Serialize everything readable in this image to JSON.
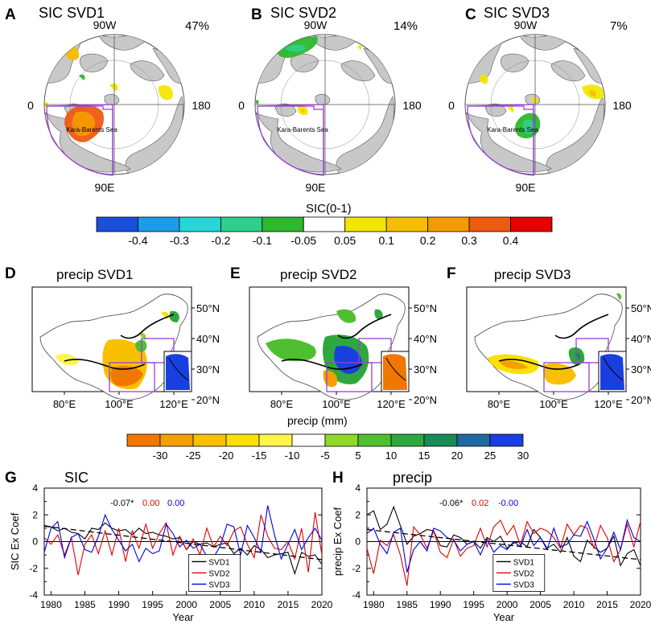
{
  "sic_maps": [
    {
      "letter": "A",
      "title": "SIC SVD1",
      "pct": "47%",
      "pattern": "svd1"
    },
    {
      "letter": "B",
      "title": "SIC SVD2",
      "pct": "14%",
      "pattern": "svd2"
    },
    {
      "letter": "C",
      "title": "SIC SVD3",
      "pct": "7%",
      "pattern": "svd3"
    }
  ],
  "polar_labels": {
    "top": "90W",
    "left": "0",
    "right": "180",
    "bottom": "90E",
    "region": "Kara-Barents Sea"
  },
  "sic_colorbar": {
    "title": "SIC(0-1)",
    "colors": [
      "#1a4fdc",
      "#1e9be8",
      "#26d6d6",
      "#2ecf8a",
      "#2db82d",
      "#ffffff",
      "#f2e600",
      "#f5bf00",
      "#f59a00",
      "#ee5a10",
      "#e60000"
    ],
    "ticks": [
      "-0.4",
      "-0.3",
      "-0.2",
      "-0.1",
      "-0.05",
      "0.05",
      "0.1",
      "0.2",
      "0.3",
      "0.4"
    ]
  },
  "precip_maps": [
    {
      "letter": "D",
      "title": "precip SVD1",
      "pattern": "p1"
    },
    {
      "letter": "E",
      "title": "precip SVD2",
      "pattern": "p2"
    },
    {
      "letter": "F",
      "title": "precip SVD3",
      "pattern": "p3"
    }
  ],
  "china_axes": {
    "lat_labels": [
      "50°N",
      "40°N",
      "30°N",
      "20°N"
    ],
    "lon_labels": [
      "80°E",
      "100°E",
      "120°E"
    ]
  },
  "precip_colorbar": {
    "title": "precip (mm)",
    "colors": [
      "#f07800",
      "#f5a000",
      "#f8c000",
      "#fbe000",
      "#fff44a",
      "#ffffff",
      "#8fd82a",
      "#4fbf32",
      "#2ea83e",
      "#1a8a56",
      "#1e6aa0",
      "#1a3fe0"
    ],
    "ticks": [
      "-30",
      "-25",
      "-20",
      "-15",
      "-10",
      "-5",
      "5",
      "10",
      "15",
      "20",
      "25",
      "30"
    ]
  },
  "chart_data": [
    {
      "letter": "G",
      "type": "line",
      "title": "SIC",
      "xlabel": "Year",
      "ylabel": "SIC Ex Coef",
      "xlim": [
        1979,
        2020
      ],
      "ylim": [
        -4,
        4
      ],
      "xticks": [
        "1980",
        "1985",
        "1990",
        "1995",
        "2000",
        "2005",
        "2010",
        "2015",
        "2020"
      ],
      "yticks": [
        "4",
        "2",
        "0",
        "-2",
        "-4"
      ],
      "trend_labels": [
        {
          "text": "-0.07*",
          "color": "#000000"
        },
        {
          "text": "0.00",
          "color": "#e00000"
        },
        {
          "text": "0.00",
          "color": "#0000e0"
        }
      ],
      "x": [
        1979,
        1980,
        1981,
        1982,
        1983,
        1984,
        1985,
        1986,
        1987,
        1988,
        1989,
        1990,
        1991,
        1992,
        1993,
        1994,
        1995,
        1996,
        1997,
        1998,
        1999,
        2000,
        2001,
        2002,
        2003,
        2004,
        2005,
        2006,
        2007,
        2008,
        2009,
        2010,
        2011,
        2012,
        2013,
        2014,
        2015,
        2016,
        2017,
        2018,
        2019,
        2020
      ],
      "series": [
        {
          "name": "SVD1",
          "color": "#000000",
          "values": [
            1.2,
            1.1,
            0.8,
            1.0,
            0.7,
            0.6,
            0.2,
            1.0,
            0.9,
            1.4,
            1.0,
            0.8,
            0.9,
            0.5,
            1.0,
            0.6,
            0.7,
            0.5,
            0.4,
            0.2,
            0.3,
            -0.6,
            0.0,
            -0.2,
            -0.1,
            -0.4,
            -0.2,
            -0.1,
            -0.9,
            -0.5,
            -1.0,
            -0.3,
            -0.6,
            -1.2,
            -1.0,
            -0.9,
            -0.8,
            -2.4,
            -0.8,
            -1.1,
            -1.0,
            -1.7
          ]
        },
        {
          "name": "SVD2",
          "color": "#e00000",
          "values": [
            0.3,
            -0.2,
            0.5,
            -1.0,
            0.3,
            -2.5,
            -0.2,
            0.5,
            -0.9,
            0.8,
            -1.0,
            1.0,
            -1.5,
            0.8,
            -0.5,
            1.3,
            -0.5,
            0.6,
            1.4,
            -1.0,
            0.4,
            -0.6,
            0.2,
            -1.0,
            1.0,
            -0.4,
            0.4,
            -0.3,
            0.8,
            1.1,
            -0.2,
            -1.2,
            2.0,
            0.4,
            -0.5,
            -0.6,
            0.0,
            -1.3,
            1.0,
            -2.3,
            2.2,
            -1.0
          ]
        },
        {
          "name": "SVD3",
          "color": "#0000e0",
          "values": [
            -0.8,
            1.0,
            1.5,
            -1.2,
            0.3,
            0.6,
            -0.6,
            -0.8,
            0.4,
            2.0,
            0.9,
            0.1,
            -0.7,
            -0.2,
            -1.5,
            -0.5,
            -0.9,
            -0.7,
            1.3,
            0.6,
            -0.4,
            0.1,
            -0.5,
            -0.2,
            -1.1,
            -1.2,
            -0.3,
            1.3,
            1.1,
            -1.0,
            1.2,
            0.3,
            -0.8,
            2.7,
            0.5,
            -1.3,
            -0.2,
            0.9,
            -0.6,
            0.3,
            1.0,
            0.1
          ]
        }
      ],
      "trend": {
        "name": "SVD1 trend",
        "color": "#000000",
        "start": 1.15,
        "end": -1.35
      },
      "legend": {
        "placement": "bottom-center",
        "items": [
          "SVD1",
          "SVD2",
          "SVD3"
        ]
      }
    },
    {
      "letter": "H",
      "type": "line",
      "title": "precip",
      "xlabel": "Year",
      "ylabel": "precip Ex Coef",
      "xlim": [
        1979,
        2020
      ],
      "ylim": [
        -4,
        4
      ],
      "xticks": [
        "1980",
        "1985",
        "1990",
        "1995",
        "2000",
        "2005",
        "2010",
        "2015",
        "2020"
      ],
      "yticks": [
        "4",
        "2",
        "0",
        "-2",
        "-4"
      ],
      "trend_labels": [
        {
          "text": "-0.06*",
          "color": "#000000"
        },
        {
          "text": "0.02",
          "color": "#e00000"
        },
        {
          "text": "-0.00",
          "color": "#0000e0"
        }
      ],
      "x": [
        1979,
        1980,
        1981,
        1982,
        1983,
        1984,
        1985,
        1986,
        1987,
        1988,
        1989,
        1990,
        1991,
        1992,
        1993,
        1994,
        1995,
        1996,
        1997,
        1998,
        1999,
        2000,
        2001,
        2002,
        2003,
        2004,
        2005,
        2006,
        2007,
        2008,
        2009,
        2010,
        2011,
        2012,
        2013,
        2014,
        2015,
        2016,
        2017,
        2018,
        2019,
        2020
      ],
      "series": [
        {
          "name": "SVD1",
          "color": "#000000",
          "values": [
            2.0,
            2.3,
            0.9,
            1.3,
            2.6,
            1.2,
            -0.2,
            0.4,
            0.6,
            0.9,
            0.8,
            -0.3,
            -0.4,
            0.5,
            0.3,
            -0.2,
            0.0,
            -0.5,
            0.3,
            0.0,
            0.4,
            -0.5,
            -0.1,
            0.0,
            -0.4,
            0.9,
            0.3,
            -0.5,
            -0.2,
            -0.8,
            0.3,
            -1.1,
            -1.5,
            0.1,
            -0.4,
            -0.8,
            -0.5,
            0.4,
            -1.8,
            -0.9,
            -0.6,
            -1.8
          ]
        },
        {
          "name": "SVD2",
          "color": "#e00000",
          "values": [
            -0.5,
            -2.4,
            0.1,
            -0.3,
            0.5,
            -1.0,
            -3.3,
            1.1,
            0.5,
            -0.5,
            0.8,
            -0.8,
            -1.2,
            0.2,
            -1.1,
            -0.5,
            -0.3,
            1.0,
            -0.4,
            1.1,
            1.6,
            0.5,
            1.2,
            -0.3,
            1.5,
            0.6,
            1.0,
            0.8,
            0.3,
            -0.5,
            1.3,
            0.5,
            1.2,
            1.0,
            -0.5,
            1.2,
            0.3,
            -1.5,
            -0.6,
            1.3,
            -0.4,
            1.5
          ]
        },
        {
          "name": "SVD3",
          "color": "#0000e0",
          "values": [
            0.6,
            1.0,
            -0.2,
            -0.9,
            0.7,
            1.0,
            -2.3,
            -0.6,
            0.0,
            -0.7,
            1.0,
            0.8,
            0.3,
            0.1,
            -0.7,
            -0.2,
            0.0,
            -1.0,
            0.2,
            -0.8,
            -0.3,
            -0.6,
            0.0,
            -0.4,
            0.9,
            -0.3,
            0.3,
            -0.6,
            1.0,
            -0.4,
            -0.2,
            0.5,
            0.4,
            1.5,
            0.2,
            -1.3,
            -0.5,
            0.7,
            -0.6,
            1.6,
            0.3,
            0.0
          ]
        }
      ],
      "trend": {
        "name": "SVD1 trend",
        "color": "#000000",
        "start": 0.9,
        "end": -1.35
      },
      "legend": {
        "placement": "bottom-center",
        "items": [
          "SVD1",
          "SVD2",
          "SVD3"
        ]
      }
    }
  ]
}
